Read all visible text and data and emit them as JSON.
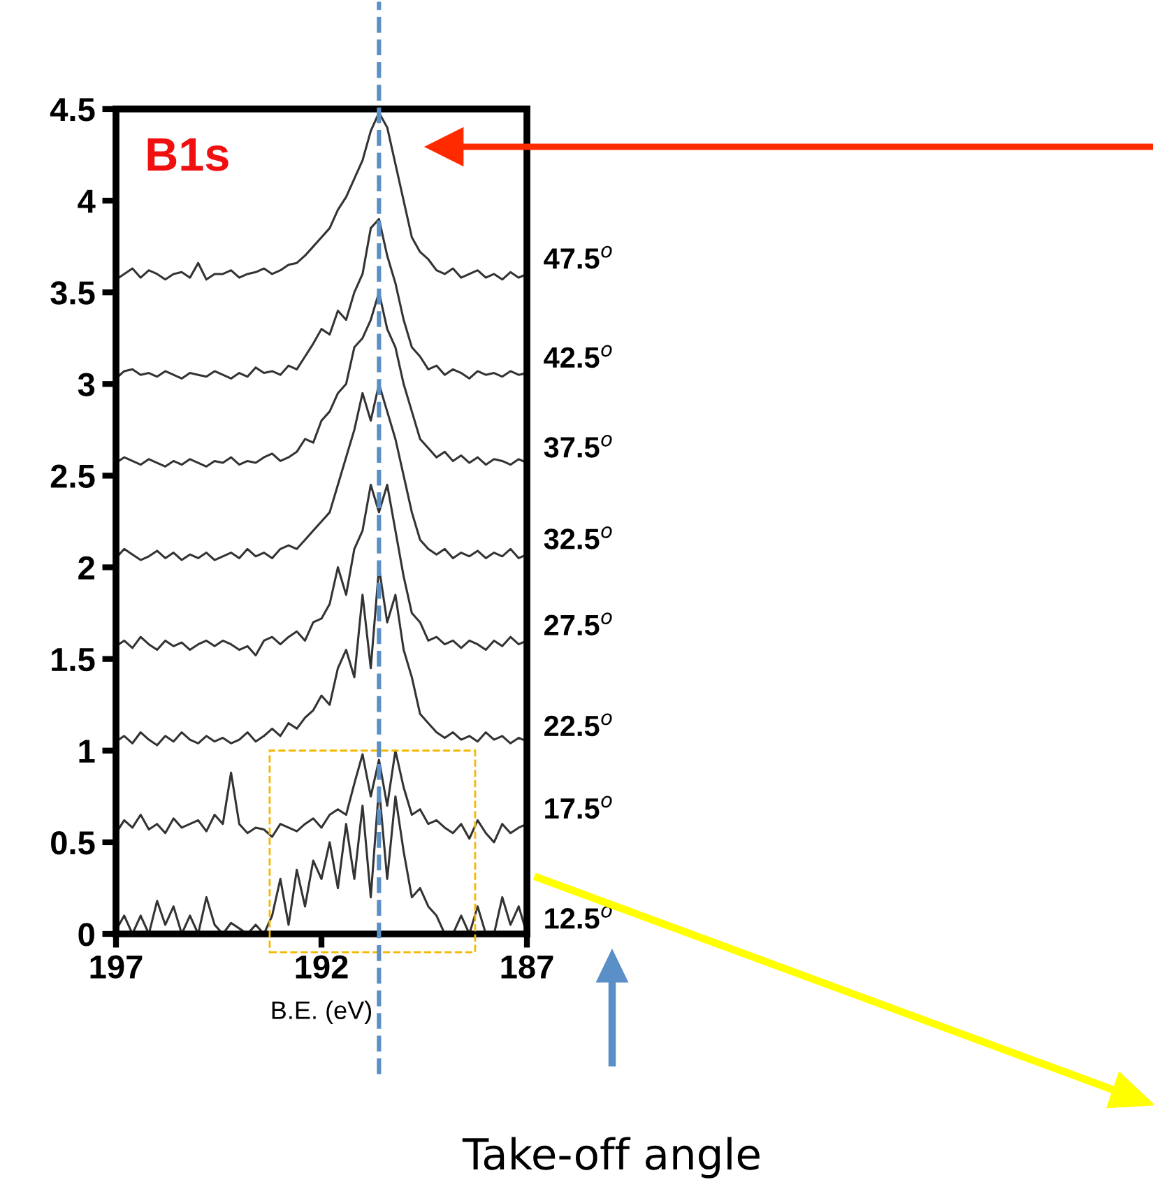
{
  "chart_data": {
    "type": "line",
    "xlabel": "B.E. (eV)",
    "xlim": [
      197,
      187
    ],
    "xticks": [
      197,
      192,
      187
    ],
    "ylim": [
      0,
      4.5
    ],
    "yticks": [
      0,
      0.5,
      1,
      1.5,
      2,
      2.5,
      3,
      3.5,
      4,
      4.5
    ],
    "grid": false,
    "legend": false,
    "marker": "none",
    "line_style": "solid",
    "x": [
      197,
      196.8,
      196.6,
      196.4,
      196.2,
      196,
      195.8,
      195.6,
      195.4,
      195.2,
      195,
      194.8,
      194.6,
      194.4,
      194.2,
      194,
      193.8,
      193.6,
      193.4,
      193.2,
      193,
      192.8,
      192.6,
      192.4,
      192.2,
      192,
      191.8,
      191.6,
      191.4,
      191.2,
      191,
      190.8,
      190.6,
      190.4,
      190.2,
      190,
      189.8,
      189.6,
      189.4,
      189.2,
      189,
      188.8,
      188.6,
      188.4,
      188.2,
      188,
      187.8,
      187.6,
      187.4,
      187.2,
      187
    ],
    "series": [
      {
        "name": "47.5$^{o}$",
        "color": "#333333",
        "values": [
          3.57,
          3.6,
          3.63,
          3.58,
          3.62,
          3.6,
          3.57,
          3.6,
          3.61,
          3.58,
          3.66,
          3.57,
          3.6,
          3.6,
          3.62,
          3.58,
          3.6,
          3.61,
          3.63,
          3.6,
          3.62,
          3.65,
          3.66,
          3.7,
          3.75,
          3.8,
          3.85,
          3.95,
          4.02,
          4.12,
          4.22,
          4.38,
          4.48,
          4.4,
          4.2,
          4.0,
          3.8,
          3.72,
          3.68,
          3.62,
          3.6,
          3.63,
          3.58,
          3.6,
          3.62,
          3.58,
          3.6,
          3.57,
          3.61,
          3.58,
          3.6
        ]
      },
      {
        "name": "42.5$^{o}$",
        "color": "#333333",
        "values": [
          3.03,
          3.07,
          3.08,
          3.05,
          3.06,
          3.04,
          3.07,
          3.05,
          3.03,
          3.06,
          3.05,
          3.04,
          3.07,
          3.05,
          3.03,
          3.06,
          3.04,
          3.09,
          3.06,
          3.07,
          3.05,
          3.1,
          3.08,
          3.15,
          3.22,
          3.3,
          3.27,
          3.4,
          3.35,
          3.5,
          3.6,
          3.85,
          3.9,
          3.7,
          3.55,
          3.35,
          3.2,
          3.15,
          3.08,
          3.1,
          3.05,
          3.08,
          3.06,
          3.03,
          3.07,
          3.05,
          3.06,
          3.04,
          3.07,
          3.05,
          3.06
        ]
      },
      {
        "name": "37.5$^{o}$",
        "color": "#333333",
        "values": [
          2.57,
          2.6,
          2.58,
          2.56,
          2.59,
          2.57,
          2.55,
          2.58,
          2.56,
          2.59,
          2.57,
          2.55,
          2.58,
          2.57,
          2.6,
          2.56,
          2.58,
          2.57,
          2.6,
          2.62,
          2.58,
          2.6,
          2.63,
          2.7,
          2.68,
          2.8,
          2.85,
          2.95,
          3.0,
          3.2,
          3.25,
          3.35,
          3.5,
          3.3,
          3.2,
          3.0,
          2.85,
          2.7,
          2.65,
          2.6,
          2.63,
          2.58,
          2.61,
          2.57,
          2.6,
          2.56,
          2.59,
          2.58,
          2.56,
          2.59,
          2.57
        ]
      },
      {
        "name": "32.5$^{o}$",
        "color": "#333333",
        "values": [
          2.05,
          2.1,
          2.07,
          2.04,
          2.06,
          2.09,
          2.05,
          2.08,
          2.04,
          2.07,
          2.05,
          2.08,
          2.04,
          2.06,
          2.08,
          2.05,
          2.1,
          2.06,
          2.08,
          2.05,
          2.1,
          2.12,
          2.1,
          2.15,
          2.2,
          2.25,
          2.3,
          2.45,
          2.6,
          2.75,
          2.95,
          2.8,
          3.0,
          2.85,
          2.7,
          2.5,
          2.3,
          2.15,
          2.1,
          2.07,
          2.1,
          2.05,
          2.08,
          2.06,
          2.09,
          2.05,
          2.08,
          2.06,
          2.1,
          2.05,
          2.07
        ]
      },
      {
        "name": "27.5$^{o}$",
        "color": "#333333",
        "values": [
          1.57,
          1.6,
          1.56,
          1.62,
          1.58,
          1.55,
          1.6,
          1.57,
          1.59,
          1.55,
          1.58,
          1.6,
          1.57,
          1.6,
          1.58,
          1.55,
          1.57,
          1.52,
          1.6,
          1.62,
          1.58,
          1.62,
          1.65,
          1.6,
          1.7,
          1.72,
          1.8,
          2.0,
          1.85,
          2.1,
          2.2,
          2.45,
          2.3,
          2.45,
          2.2,
          1.95,
          1.75,
          1.7,
          1.6,
          1.62,
          1.58,
          1.6,
          1.56,
          1.6,
          1.58,
          1.55,
          1.6,
          1.57,
          1.62,
          1.58,
          1.6
        ]
      },
      {
        "name": "22.5$^{o}$",
        "color": "#333333",
        "values": [
          1.05,
          1.08,
          1.04,
          1.1,
          1.06,
          1.03,
          1.08,
          1.05,
          1.1,
          1.06,
          1.04,
          1.08,
          1.05,
          1.07,
          1.04,
          1.06,
          1.1,
          1.05,
          1.08,
          1.12,
          1.08,
          1.15,
          1.12,
          1.18,
          1.22,
          1.3,
          1.25,
          1.45,
          1.55,
          1.4,
          1.85,
          1.45,
          2.0,
          1.7,
          1.85,
          1.55,
          1.4,
          1.2,
          1.15,
          1.1,
          1.07,
          1.1,
          1.06,
          1.08,
          1.05,
          1.1,
          1.06,
          1.08,
          1.04,
          1.07,
          1.05
        ]
      },
      {
        "name": "17.5$^{o}$",
        "color": "#333333",
        "values": [
          0.55,
          0.62,
          0.58,
          0.65,
          0.57,
          0.6,
          0.55,
          0.63,
          0.58,
          0.6,
          0.62,
          0.56,
          0.65,
          0.6,
          0.88,
          0.6,
          0.55,
          0.58,
          0.57,
          0.53,
          0.6,
          0.58,
          0.56,
          0.6,
          0.63,
          0.58,
          0.65,
          0.68,
          0.65,
          0.82,
          0.98,
          0.75,
          0.95,
          0.7,
          1.0,
          0.8,
          0.65,
          0.68,
          0.6,
          0.62,
          0.58,
          0.55,
          0.6,
          0.52,
          0.62,
          0.55,
          0.5,
          0.6,
          0.55,
          0.58,
          0.6
        ]
      },
      {
        "name": "12.5$^{o}$",
        "color": "#333333",
        "values": [
          0.02,
          0.1,
          0.0,
          0.1,
          0.0,
          0.18,
          0.05,
          0.15,
          0.0,
          0.1,
          0.0,
          0.2,
          0.05,
          0.0,
          0.06,
          0.03,
          0.0,
          0.05,
          0.0,
          0.1,
          0.3,
          0.05,
          0.35,
          0.15,
          0.4,
          0.3,
          0.5,
          0.25,
          0.6,
          0.3,
          0.7,
          0.2,
          0.8,
          0.3,
          0.75,
          0.45,
          0.2,
          0.25,
          0.15,
          0.1,
          0.0,
          0.0,
          0.1,
          0.0,
          0.15,
          0.0,
          0.0,
          0.2,
          0.05,
          0.15,
          0.0
        ]
      }
    ],
    "ref_lines": [
      {
        "axis": "x",
        "value": 190.6,
        "color": "#5b8fc7",
        "line_style": "dashed"
      }
    ],
    "annotations": [
      "B1s",
      "Take-off angle"
    ]
  }
}
